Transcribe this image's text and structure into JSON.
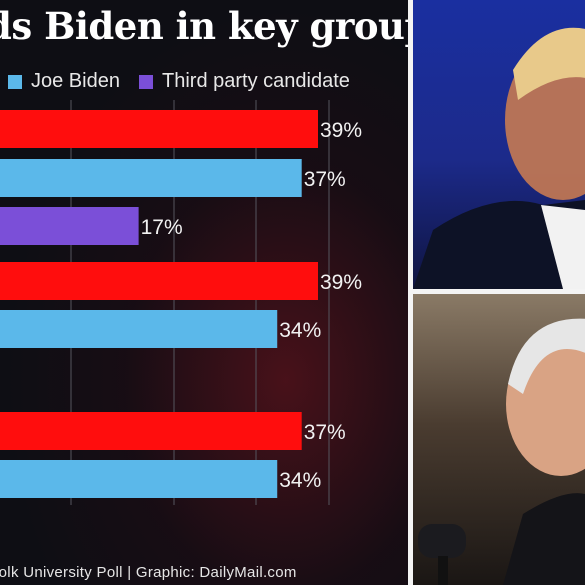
{
  "title": "ds Biden in key groups",
  "legend": [
    {
      "label": "Joe Biden",
      "color": "#5bb8ea"
    },
    {
      "label": "Third party candidate",
      "color": "#7b4fd8"
    }
  ],
  "footer": "ffolk University Poll  | Graphic: DailyMail.com",
  "chart_data": {
    "type": "bar",
    "orientation": "horizontal",
    "title": "ds Biden in key groups",
    "bars": [
      {
        "value": 39,
        "label": "39%",
        "color": "#ff0d0d"
      },
      {
        "value": 37,
        "label": "37%",
        "color": "#5bb8ea"
      },
      {
        "value": 17,
        "label": "17%",
        "color": "#7b4fd8"
      },
      {
        "value": 39,
        "label": "39%",
        "color": "#ff0d0d"
      },
      {
        "value": 34,
        "label": "34%",
        "color": "#5bb8ea"
      },
      {
        "value": 37,
        "label": "37%",
        "color": "#ff0d0d"
      },
      {
        "value": 34,
        "label": "34%",
        "color": "#5bb8ea"
      }
    ],
    "xlim": [
      0,
      48
    ],
    "grid": true
  }
}
